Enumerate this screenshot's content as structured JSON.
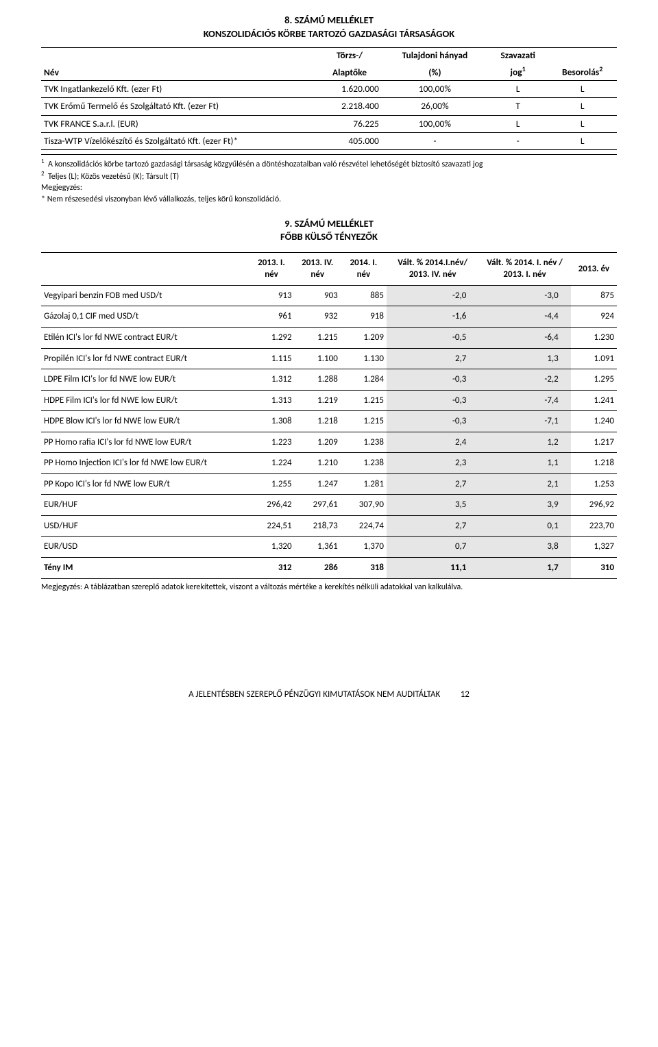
{
  "section8": {
    "title1": "8. SZÁMÚ MELLÉKLET",
    "title2": "KONSZOLIDÁCIÓS KÖRBE TARTOZÓ GAZDASÁGI TÁRSASÁGOK",
    "headers": {
      "nev": "Név",
      "torzs": "Törzs-/",
      "alaptoke": "Alaptőke",
      "tulajdoni": "Tulajdoni hányad",
      "pct": "(%)",
      "szavazati": "Szavazati",
      "jog": "jog",
      "jog_sup": "1",
      "besorolas": "Besorolás",
      "besorolas_sup": "2"
    },
    "rows": [
      {
        "nev": "TVK Ingatlankezelő Kft. (ezer Ft)",
        "torzs": "1.620.000",
        "pct": "100,00%",
        "jog": "L",
        "bes": "L"
      },
      {
        "nev": "TVK Erőmű Termelő és Szolgáltató Kft. (ezer Ft)",
        "torzs": "2.218.400",
        "pct": "26,00%",
        "jog": "T",
        "bes": "L"
      },
      {
        "nev": "TVK FRANCE S.a.r.l. (EUR)",
        "torzs": "76.225",
        "pct": "100,00%",
        "jog": "L",
        "bes": "L"
      },
      {
        "nev": "Tisza-WTP Vízelőkészítő és Szolgáltató Kft. (ezer Ft)*",
        "torzs": "405.000",
        "pct": "-",
        "jog": "-",
        "bes": "L"
      }
    ],
    "foot1_sup": "1",
    "foot1": "A konszolidációs körbe tartozó gazdasági társaság közgyűlésén a döntéshozatalban való részvétel lehetőségét biztosító szavazati jog",
    "foot2_sup": "2",
    "foot2": "Teljes (L); Közös vezetésű (K); Társult (T)",
    "megj_label": "Megjegyzés:",
    "megj_text": "* Nem részesedési viszonyban lévő vállalkozás, teljes körű konszolidáció."
  },
  "section9": {
    "title1": "9. SZÁMÚ MELLÉKLET",
    "title2": "FŐBB KÜLSŐ TÉNYEZŐK",
    "headers": {
      "c1": "2013. I. név",
      "c2": "2013. IV. név",
      "c3": "2014. I. név",
      "c4": "Vált. % 2014.I.név/ 2013. IV. név",
      "c5": "Vált. % 2014. I. név / 2013. I. név",
      "c6": "2013. év"
    },
    "rows": [
      {
        "l": "Vegyipari benzin FOB med USD/t",
        "c1": "913",
        "c2": "903",
        "c3": "885",
        "c4": "-2,0",
        "c5": "-3,0",
        "c6": "875"
      },
      {
        "l": "Gázolaj 0,1 CIF med USD/t",
        "c1": "961",
        "c2": "932",
        "c3": "918",
        "c4": "-1,6",
        "c5": "-4,4",
        "c6": "924"
      },
      {
        "l": "Etilén ICI's lor fd NWE contract EUR/t",
        "c1": "1.292",
        "c2": "1.215",
        "c3": "1.209",
        "c4": "-0,5",
        "c5": "-6,4",
        "c6": "1.230"
      },
      {
        "l": "Propilén ICI's lor fd NWE contract EUR/t",
        "c1": "1.115",
        "c2": "1.100",
        "c3": "1.130",
        "c4": "2,7",
        "c5": "1,3",
        "c6": "1.091"
      },
      {
        "l": "LDPE Film ICI's lor fd NWE low EUR/t",
        "c1": "1.312",
        "c2": "1.288",
        "c3": "1.284",
        "c4": "-0,3",
        "c5": "-2,2",
        "c6": "1.295"
      },
      {
        "l": "HDPE Film ICI's lor fd NWE low EUR/t",
        "c1": "1.313",
        "c2": "1.219",
        "c3": "1.215",
        "c4": "-0,3",
        "c5": "-7,4",
        "c6": "1.241"
      },
      {
        "l": "HDPE Blow ICI's lor fd NWE low EUR/t",
        "c1": "1.308",
        "c2": "1.218",
        "c3": "1.215",
        "c4": "-0,3",
        "c5": "-7,1",
        "c6": "1.240"
      },
      {
        "l": "PP Homo rafia ICI's lor fd NWE low EUR/t",
        "c1": "1.223",
        "c2": "1.209",
        "c3": "1.238",
        "c4": "2,4",
        "c5": "1,2",
        "c6": "1.217"
      },
      {
        "l": "PP Homo Injection ICI's lor fd NWE low EUR/t",
        "c1": "1.224",
        "c2": "1.210",
        "c3": "1.238",
        "c4": "2,3",
        "c5": "1,1",
        "c6": "1.218"
      },
      {
        "l": "PP Kopo ICI's lor fd NWE low EUR/t",
        "c1": "1.255",
        "c2": "1.247",
        "c3": "1.281",
        "c4": "2,7",
        "c5": "2,1",
        "c6": "1.253"
      },
      {
        "l": "EUR/HUF",
        "c1": "296,42",
        "c2": "297,61",
        "c3": "307,90",
        "c4": "3,5",
        "c5": "3,9",
        "c6": "296,92"
      },
      {
        "l": "USD/HUF",
        "c1": "224,51",
        "c2": "218,73",
        "c3": "224,74",
        "c4": "2,7",
        "c5": "0,1",
        "c6": "223,70"
      },
      {
        "l": "EUR/USD",
        "c1": "1,320",
        "c2": "1,361",
        "c3": "1,370",
        "c4": "0,7",
        "c5": "3,8",
        "c6": "1,327"
      },
      {
        "l": "Tény IM",
        "c1": "312",
        "c2": "286",
        "c3": "318",
        "c4": "11,1",
        "c5": "1,7",
        "c6": "310",
        "bold": true
      }
    ],
    "note": "Megjegyzés: A táblázatban szereplő adatok kerekítettek, viszont a változás mértéke a kerekítés nélküli adatokkal van kalkulálva."
  },
  "footer": {
    "text": "A JELENTÉSBEN SZEREPLŐ PÉNZÜGYI KIMUTATÁSOK NEM AUDITÁLTAK",
    "page": "12"
  }
}
